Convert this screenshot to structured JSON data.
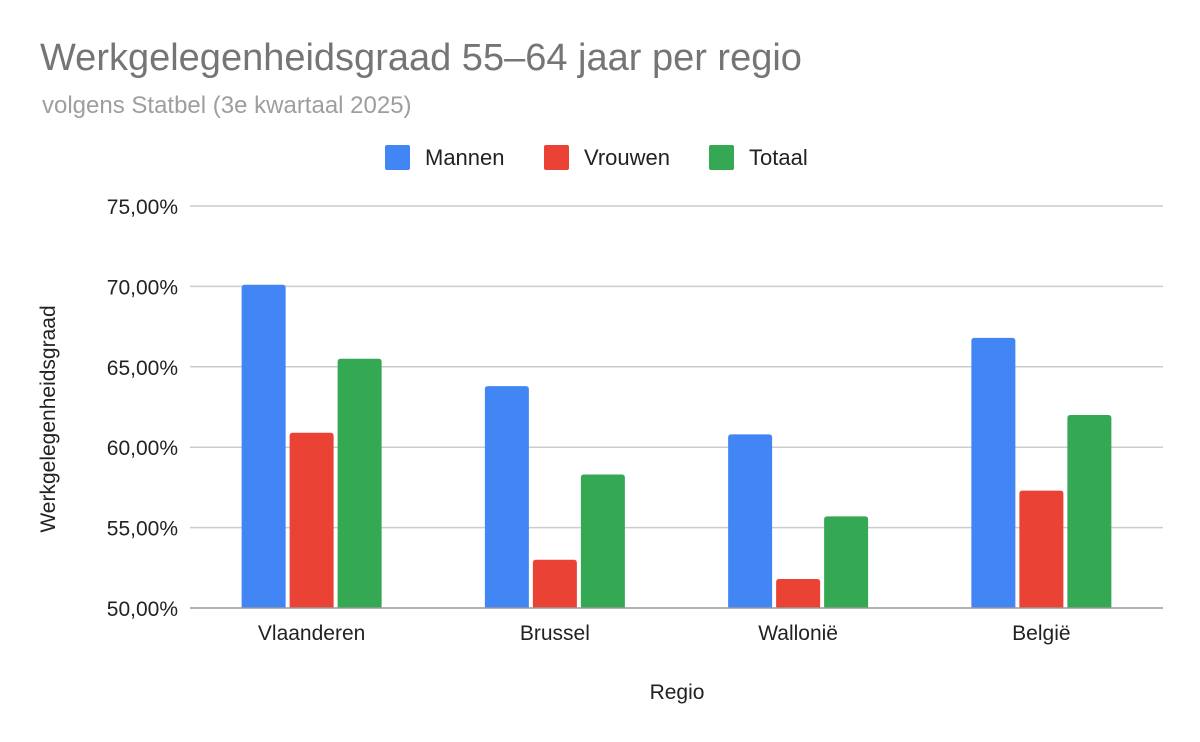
{
  "chart_data": {
    "type": "bar",
    "title": "Werkgelegenheidsgraad 55–64 jaar per regio",
    "subtitle": "volgens Statbel (3e kwartaal 2025)",
    "xlabel": "Regio",
    "ylabel": "Werkgelegenheidsgraad",
    "categories": [
      "Vlaanderen",
      "Brussel",
      "Wallonië",
      "België"
    ],
    "series": [
      {
        "name": "Mannen",
        "color": "#4285f4",
        "values": [
          70.1,
          63.8,
          60.8,
          66.8
        ]
      },
      {
        "name": "Vrouwen",
        "color": "#ea4335",
        "values": [
          60.9,
          53.0,
          51.8,
          57.3
        ]
      },
      {
        "name": "Totaal",
        "color": "#34a853",
        "values": [
          65.5,
          58.3,
          55.7,
          62.0
        ]
      }
    ],
    "ylim": [
      50,
      75
    ],
    "yticks": [
      50,
      55,
      60,
      65,
      70,
      75
    ],
    "ytick_labels": [
      "50,00%",
      "55,00%",
      "60,00%",
      "65,00%",
      "70,00%",
      "75,00%"
    ],
    "grid": true,
    "legend_position": "top"
  }
}
